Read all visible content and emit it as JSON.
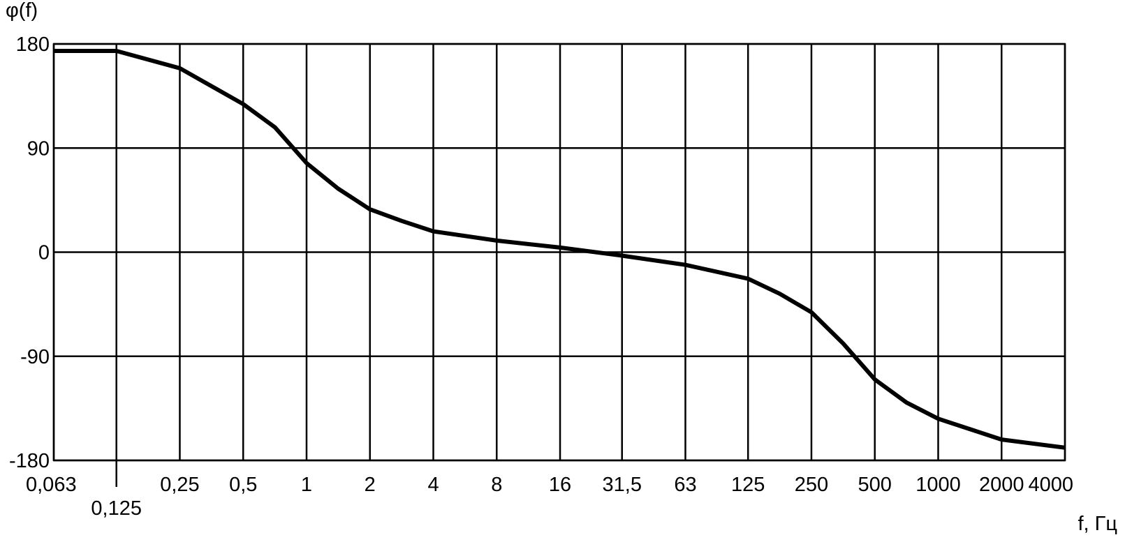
{
  "chart_data": {
    "type": "line",
    "y_label": "φ(f)",
    "x_label": "f, Гц",
    "x_scale": "log",
    "grid": true,
    "xlim": [
      0.063,
      4000
    ],
    "ylim": [
      -180,
      180
    ],
    "yticks": [
      180,
      90,
      0,
      -90,
      -180
    ],
    "xticks": [
      {
        "value": 0.063,
        "label": "0,063"
      },
      {
        "value": 0.125,
        "label": "0,125"
      },
      {
        "value": 0.25,
        "label": "0,25"
      },
      {
        "value": 0.5,
        "label": "0,5"
      },
      1,
      2,
      4,
      8,
      16,
      {
        "value": 31.5,
        "label": "31,5"
      },
      63,
      125,
      250,
      500,
      1000,
      2000,
      4000
    ],
    "x": [
      0.063,
      0.125,
      0.25,
      0.5,
      0.707,
      1,
      1.41,
      2,
      2.83,
      4,
      8,
      16,
      31.5,
      63,
      125,
      177,
      250,
      354,
      500,
      707,
      1000,
      2000,
      4000
    ],
    "series": [
      {
        "color": "#000000",
        "values": [
          174,
          174,
          159,
          128,
          108,
          77,
          55,
          37,
          27,
          18,
          10,
          4,
          -3,
          -11,
          -23,
          -36,
          -52,
          -79,
          -110,
          -130,
          -144,
          -162,
          -169
        ]
      }
    ]
  }
}
